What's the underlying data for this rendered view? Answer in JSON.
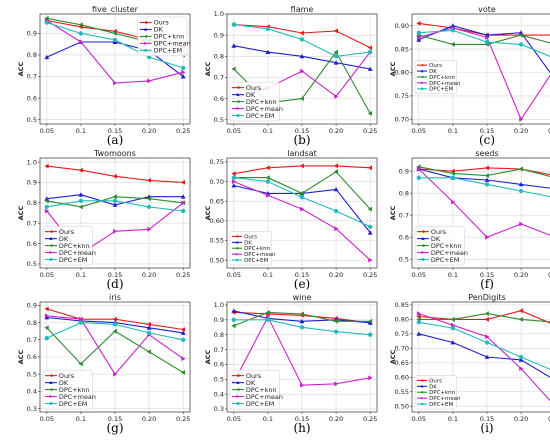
{
  "series_colors": {
    "Ours": "#e41a1c",
    "DK": "#1f1fd0",
    "DPC+knn": "#2e8b2e",
    "DPC+mean": "#cc22cc",
    "DPC+EM": "#22bbbb"
  },
  "chart_data": [
    {
      "type": "line",
      "caption": "(a)",
      "title": "five_cluster",
      "ylabel": "ACC",
      "x": [
        0.05,
        0.1,
        0.15,
        0.2,
        0.25
      ],
      "xticks": [
        "0.05",
        "0.1",
        "0.15",
        "0.20",
        "0.25"
      ],
      "ylim": [
        0.48,
        0.99
      ],
      "yticks": [
        0.5,
        0.6,
        0.7,
        0.8,
        0.9
      ],
      "ytick_labels": [
        "0.5",
        "0.6",
        "0.7",
        "0.8",
        "0.9"
      ],
      "legend": "upper-right",
      "legend_scale": 0.85,
      "series": [
        {
          "name": "Ours",
          "values": [
            0.96,
            0.93,
            0.91,
            0.87,
            0.84
          ]
        },
        {
          "name": "DK",
          "values": [
            0.79,
            0.86,
            0.86,
            0.82,
            0.7
          ]
        },
        {
          "name": "DPC+knn",
          "values": [
            0.97,
            0.94,
            0.9,
            0.86,
            0.8
          ]
        },
        {
          "name": "DPC+mean",
          "values": [
            0.96,
            0.86,
            0.67,
            0.68,
            0.72
          ]
        },
        {
          "name": "DPC+EM",
          "values": [
            0.95,
            0.9,
            0.87,
            0.79,
            0.74
          ]
        }
      ]
    },
    {
      "type": "line",
      "caption": "(b)",
      "title": "flame",
      "ylabel": "ACC",
      "x": [
        0.05,
        0.1,
        0.15,
        0.2,
        0.25
      ],
      "xticks": [
        "0.05",
        "0.1",
        "0.15",
        "0.20",
        "0.25"
      ],
      "ylim": [
        0.48,
        1.0
      ],
      "yticks": [
        0.5,
        0.6,
        0.7,
        0.8,
        0.9,
        1.0
      ],
      "ytick_labels": [
        "0.5",
        "0.6",
        "0.7",
        "0.8",
        "0.9",
        "1.0"
      ],
      "legend": "lower-left",
      "legend_scale": 0.85,
      "series": [
        {
          "name": "Ours",
          "values": [
            0.95,
            0.94,
            0.91,
            0.92,
            0.84
          ]
        },
        {
          "name": "DK",
          "values": [
            0.85,
            0.82,
            0.8,
            0.77,
            0.74
          ]
        },
        {
          "name": "DPC+knn",
          "values": [
            0.74,
            0.58,
            0.6,
            0.82,
            0.53
          ]
        },
        {
          "name": "DPC+mean",
          "values": [
            0.6,
            0.65,
            0.73,
            0.61,
            0.82
          ]
        },
        {
          "name": "DPC+EM",
          "values": [
            0.95,
            0.93,
            0.88,
            0.8,
            0.82
          ]
        }
      ]
    },
    {
      "type": "line",
      "caption": "(c)",
      "title": "vote",
      "ylabel": "ACC",
      "x": [
        0.05,
        0.1,
        0.15,
        0.2,
        0.25
      ],
      "xticks": [
        "0.05",
        "0.1",
        "0.15",
        "0.20",
        "0.25"
      ],
      "ylim": [
        0.69,
        0.925
      ],
      "yticks": [
        0.7,
        0.75,
        0.8,
        0.85,
        0.9
      ],
      "ytick_labels": [
        "0.70",
        "0.75",
        "0.80",
        "0.85",
        "0.90"
      ],
      "legend": "middle-left",
      "legend_scale": 0.72,
      "series": [
        {
          "name": "Ours",
          "values": [
            0.905,
            0.895,
            0.88,
            0.88,
            0.88
          ]
        },
        {
          "name": "DK",
          "values": [
            0.87,
            0.9,
            0.88,
            0.885,
            0.785
          ]
        },
        {
          "name": "DPC+knn",
          "values": [
            0.88,
            0.86,
            0.86,
            0.88,
            0.86
          ]
        },
        {
          "name": "DPC+mean",
          "values": [
            0.875,
            0.895,
            0.875,
            0.7,
            0.81
          ]
        },
        {
          "name": "DPC+EM",
          "values": [
            0.885,
            0.89,
            0.865,
            0.86,
            0.83
          ]
        }
      ]
    },
    {
      "type": "line",
      "caption": "(d)",
      "title": "Twomoons",
      "ylabel": "ACC",
      "x": [
        0.05,
        0.1,
        0.15,
        0.2,
        0.25
      ],
      "xticks": [
        "0.05",
        "0.1",
        "0.15",
        "0.20",
        "0.25"
      ],
      "ylim": [
        0.48,
        1.02
      ],
      "yticks": [
        0.5,
        0.6,
        0.7,
        0.8,
        0.9,
        1.0
      ],
      "ytick_labels": [
        "0.5",
        "0.6",
        "0.7",
        "0.8",
        "0.9",
        "1.0"
      ],
      "legend": "lower-left",
      "legend_scale": 0.85,
      "series": [
        {
          "name": "Ours",
          "values": [
            0.98,
            0.96,
            0.93,
            0.91,
            0.9
          ]
        },
        {
          "name": "DK",
          "values": [
            0.82,
            0.84,
            0.79,
            0.83,
            0.83
          ]
        },
        {
          "name": "DPC+knn",
          "values": [
            0.81,
            0.78,
            0.83,
            0.82,
            0.8
          ]
        },
        {
          "name": "DPC+mean",
          "values": [
            0.76,
            0.55,
            0.66,
            0.67,
            0.8
          ]
        },
        {
          "name": "DPC+EM",
          "values": [
            0.78,
            0.81,
            0.81,
            0.78,
            0.76
          ]
        }
      ]
    },
    {
      "type": "line",
      "caption": "(e)",
      "title": "landsat",
      "ylabel": "ACC",
      "x": [
        0.05,
        0.1,
        0.15,
        0.2,
        0.25
      ],
      "xticks": [
        "0.05",
        "0.1",
        "0.15",
        "0.20",
        "0.25"
      ],
      "ylim": [
        0.48,
        0.76
      ],
      "yticks": [
        0.5,
        0.55,
        0.6,
        0.65,
        0.7,
        0.75
      ],
      "ytick_labels": [
        "0.50",
        "0.55",
        "0.60",
        "0.65",
        "0.70",
        "0.75"
      ],
      "legend": "lower-left",
      "legend_scale": 0.72,
      "series": [
        {
          "name": "Ours",
          "values": [
            0.72,
            0.735,
            0.74,
            0.74,
            0.735
          ]
        },
        {
          "name": "DK",
          "values": [
            0.69,
            0.67,
            0.67,
            0.68,
            0.57
          ]
        },
        {
          "name": "DPC+knn",
          "values": [
            0.71,
            0.71,
            0.67,
            0.725,
            0.63
          ]
        },
        {
          "name": "DPC+mean",
          "values": [
            0.7,
            0.665,
            0.63,
            0.58,
            0.5
          ]
        },
        {
          "name": "DPC+EM",
          "values": [
            0.71,
            0.7,
            0.66,
            0.625,
            0.585
          ]
        }
      ]
    },
    {
      "type": "line",
      "caption": "(f)",
      "title": "seeds",
      "ylabel": "ACC",
      "x": [
        0.05,
        0.1,
        0.15,
        0.2,
        0.25
      ],
      "xticks": [
        "0.05",
        "0.1",
        "0.15",
        "0.20",
        "0.25"
      ],
      "ylim": [
        0.46,
        0.96
      ],
      "yticks": [
        0.5,
        0.6,
        0.7,
        0.8,
        0.9
      ],
      "ytick_labels": [
        "0.5",
        "0.6",
        "0.7",
        "0.8",
        "0.9"
      ],
      "legend": "lower-left",
      "legend_scale": 0.85,
      "series": [
        {
          "name": "Ours",
          "values": [
            0.91,
            0.9,
            0.915,
            0.91,
            0.88
          ]
        },
        {
          "name": "DK",
          "values": [
            0.91,
            0.87,
            0.86,
            0.84,
            0.82
          ]
        },
        {
          "name": "DPC+knn",
          "values": [
            0.92,
            0.89,
            0.88,
            0.91,
            0.87
          ]
        },
        {
          "name": "DPC+mean",
          "values": [
            0.91,
            0.76,
            0.6,
            0.66,
            0.6
          ]
        },
        {
          "name": "DPC+EM",
          "values": [
            0.87,
            0.87,
            0.84,
            0.81,
            0.78
          ]
        }
      ]
    },
    {
      "type": "line",
      "caption": "(g)",
      "title": "iris",
      "ylabel": "ACC",
      "x": [
        0.05,
        0.1,
        0.15,
        0.2,
        0.25
      ],
      "xticks": [
        "0.05",
        "0.1",
        "0.15",
        "0.20",
        "0.25"
      ],
      "ylim": [
        0.28,
        0.92
      ],
      "yticks": [
        0.3,
        0.4,
        0.5,
        0.6,
        0.7,
        0.8,
        0.9
      ],
      "ytick_labels": [
        "0.3",
        "0.4",
        "0.5",
        "0.6",
        "0.7",
        "0.8",
        "0.9"
      ],
      "legend": "lower-left",
      "legend_scale": 0.85,
      "series": [
        {
          "name": "Ours",
          "values": [
            0.88,
            0.82,
            0.82,
            0.79,
            0.76
          ]
        },
        {
          "name": "DK",
          "values": [
            0.83,
            0.81,
            0.8,
            0.77,
            0.74
          ]
        },
        {
          "name": "DPC+knn",
          "values": [
            0.77,
            0.56,
            0.75,
            0.63,
            0.51
          ]
        },
        {
          "name": "DPC+mean",
          "values": [
            0.84,
            0.82,
            0.5,
            0.73,
            0.59
          ]
        },
        {
          "name": "DPC+EM",
          "values": [
            0.71,
            0.8,
            0.79,
            0.74,
            0.7
          ]
        }
      ]
    },
    {
      "type": "line",
      "caption": "(h)",
      "title": "wine",
      "ylabel": "ACC",
      "x": [
        0.05,
        0.1,
        0.15,
        0.2,
        0.25
      ],
      "xticks": [
        "0.05",
        "0.1",
        "0.15",
        "0.20",
        "0.25"
      ],
      "ylim": [
        0.28,
        1.02
      ],
      "yticks": [
        0.3,
        0.4,
        0.5,
        0.6,
        0.7,
        0.8,
        0.9,
        1.0
      ],
      "ytick_labels": [
        "0.3",
        "0.4",
        "0.5",
        "0.6",
        "0.7",
        "0.8",
        "0.9",
        "1.0"
      ],
      "legend": "lower-left",
      "legend_scale": 0.85,
      "series": [
        {
          "name": "Ours",
          "values": [
            0.95,
            0.94,
            0.93,
            0.91,
            0.88
          ]
        },
        {
          "name": "DK",
          "values": [
            0.96,
            0.91,
            0.89,
            0.9,
            0.88
          ]
        },
        {
          "name": "DPC+knn",
          "values": [
            0.86,
            0.95,
            0.94,
            0.89,
            0.89
          ]
        },
        {
          "name": "DPC+mean",
          "values": [
            0.48,
            0.92,
            0.46,
            0.47,
            0.51
          ]
        },
        {
          "name": "DPC+EM",
          "values": [
            0.9,
            0.9,
            0.85,
            0.82,
            0.8
          ]
        }
      ]
    },
    {
      "type": "line",
      "caption": "(i)",
      "title": "PenDigits",
      "ylabel": "ACC",
      "x": [
        0.05,
        0.1,
        0.15,
        0.2,
        0.25
      ],
      "xticks": [
        "0.05",
        "0.1",
        "0.15",
        "0.20",
        "0.25"
      ],
      "ylim": [
        0.48,
        0.86
      ],
      "yticks": [
        0.5,
        0.55,
        0.6,
        0.65,
        0.7,
        0.75,
        0.8,
        0.85
      ],
      "ytick_labels": [
        "0.50",
        "0.55",
        "0.60",
        "0.65",
        "0.70",
        "0.75",
        "0.80",
        "0.85"
      ],
      "legend": "lower-left",
      "legend_scale": 0.72,
      "series": [
        {
          "name": "Ours",
          "values": [
            0.81,
            0.8,
            0.8,
            0.83,
            0.78
          ]
        },
        {
          "name": "DK",
          "values": [
            0.75,
            0.72,
            0.67,
            0.66,
            0.59
          ]
        },
        {
          "name": "DPC+knn",
          "values": [
            0.8,
            0.8,
            0.82,
            0.8,
            0.79
          ]
        },
        {
          "name": "DPC+mean",
          "values": [
            0.82,
            0.78,
            0.74,
            0.63,
            0.5
          ]
        },
        {
          "name": "DPC+EM",
          "values": [
            0.79,
            0.77,
            0.72,
            0.67,
            0.62
          ]
        }
      ]
    }
  ]
}
